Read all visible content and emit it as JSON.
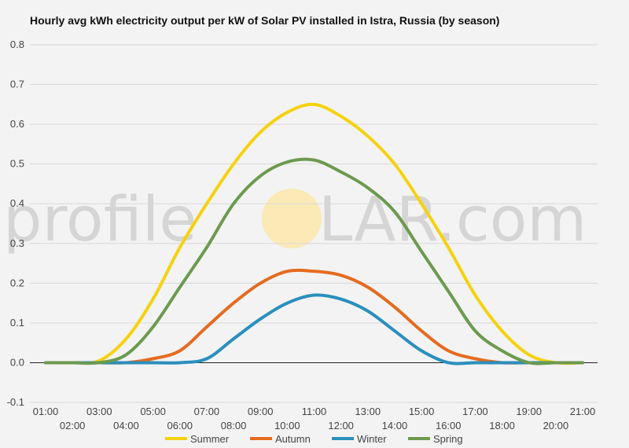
{
  "title": "Hourly avg kWh electricity output per kW of Solar PV installed in Istra, Russia (by season)",
  "watermark": {
    "left": "profile",
    "right": "LAR.com"
  },
  "colors": {
    "background": "#f3f3f3",
    "grid": "#d9d9d9",
    "zero_line": "#222222",
    "watermark_sun": "#fbe9b6"
  },
  "chart_data": {
    "type": "line",
    "title": "Hourly avg kWh electricity output per kW of Solar PV installed in Istra, Russia (by season)",
    "xlabel": "",
    "ylabel": "",
    "ylim": [
      -0.1,
      0.8
    ],
    "yticks": [
      "-0.1",
      "0.0",
      "0.1",
      "0.2",
      "0.3",
      "0.4",
      "0.5",
      "0.6",
      "0.7",
      "0.8"
    ],
    "categories": [
      "01:00",
      "02:00",
      "03:00",
      "04:00",
      "05:00",
      "06:00",
      "07:00",
      "08:00",
      "09:00",
      "10:00",
      "11:00",
      "12:00",
      "13:00",
      "14:00",
      "15:00",
      "16:00",
      "17:00",
      "18:00",
      "19:00",
      "20:00",
      "21:00"
    ],
    "grid": true,
    "legend_position": "bottom",
    "series": [
      {
        "name": "Summer",
        "color": "#f5d20f",
        "values": [
          0.0,
          0.0,
          0.005,
          0.06,
          0.16,
          0.29,
          0.4,
          0.5,
          0.58,
          0.63,
          0.65,
          0.62,
          0.57,
          0.5,
          0.4,
          0.29,
          0.17,
          0.08,
          0.02,
          0.0,
          0.0
        ]
      },
      {
        "name": "Autumn",
        "color": "#e56b1f",
        "values": [
          0.0,
          0.0,
          0.0,
          0.0,
          0.01,
          0.03,
          0.09,
          0.15,
          0.2,
          0.23,
          0.23,
          0.22,
          0.19,
          0.14,
          0.08,
          0.03,
          0.01,
          0.0,
          0.0,
          0.0,
          0.0
        ]
      },
      {
        "name": "Winter",
        "color": "#2a8fbd",
        "values": [
          0.0,
          0.0,
          0.0,
          0.0,
          0.0,
          0.0,
          0.01,
          0.06,
          0.11,
          0.15,
          0.17,
          0.16,
          0.13,
          0.08,
          0.03,
          0.0,
          0.0,
          0.0,
          0.0,
          0.0,
          0.0
        ]
      },
      {
        "name": "Spring",
        "color": "#6c9a4f",
        "values": [
          0.0,
          0.0,
          0.0,
          0.02,
          0.09,
          0.19,
          0.29,
          0.4,
          0.47,
          0.505,
          0.51,
          0.48,
          0.44,
          0.38,
          0.28,
          0.18,
          0.08,
          0.03,
          0.0,
          0.0,
          0.0
        ]
      }
    ]
  }
}
